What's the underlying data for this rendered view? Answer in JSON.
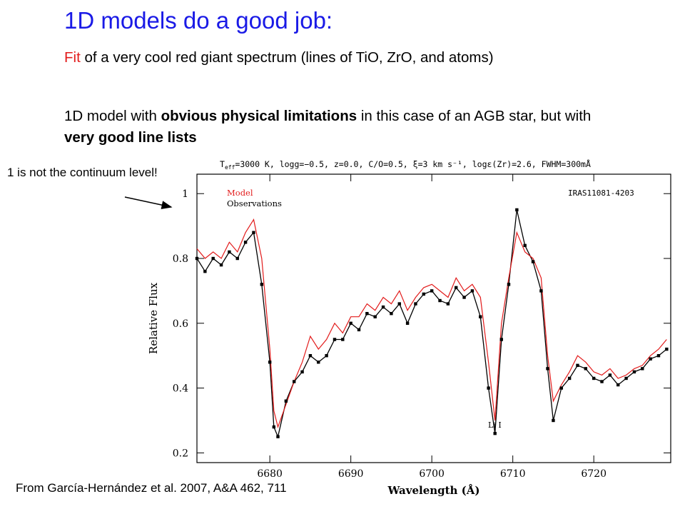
{
  "slide": {
    "title": "1D models do a good job:",
    "fit_lead": "Fit",
    "fit_rest": " of a very cool red giant spectrum (lines of TiO, ZrO, and atoms)",
    "model_a": "1D model with ",
    "model_b": "obvious physical limitations",
    "model_c": " in this case of an AGB star, but with ",
    "model_d": "very good line lists",
    "note": "1 is not the continuum level!",
    "source": "From García-Hernández et al. 2007, A&A 462, 711"
  },
  "chart_data": {
    "type": "line",
    "params": "T_eff=3000 K, logg=−0.5, z=0.0, C/O=0.5, ξ=3 km s⁻¹, logε(Zr)=2.6, FWHM=300mÅ",
    "params_prefix": "T",
    "params_sub": "eff",
    "params_body": "=3000 K, logg=−0.5, z=0.0, C/O=0.5, ξ=3 km s⁻¹, logε(Zr)=2.6, FWHM=300mÅ",
    "star": "IRAS11081-4203",
    "xlabel": "Wavelength (Å)",
    "ylabel": "Relative Flux",
    "annotation": "Li I",
    "xlim": [
      6671,
      6729.5
    ],
    "ylim": [
      0.17,
      1.06
    ],
    "xticks": [
      6680,
      6690,
      6700,
      6710,
      6720
    ],
    "yticks": [
      0.2,
      0.4,
      0.6,
      0.8,
      1
    ],
    "ytick_labels": [
      "0.2",
      "0.4",
      "0.6",
      "0.8",
      "1"
    ],
    "series": [
      {
        "name": "Model",
        "color": "#e21b1b",
        "x": [
          6671,
          6672,
          6673,
          6674,
          6675,
          6676,
          6677,
          6678,
          6679,
          6680,
          6680.5,
          6681,
          6682,
          6683,
          6684,
          6685,
          6686,
          6687,
          6688,
          6689,
          6690,
          6691,
          6692,
          6693,
          6694,
          6695,
          6696,
          6697,
          6698,
          6699,
          6700,
          6701,
          6702,
          6703,
          6704,
          6705,
          6706,
          6707,
          6707.8,
          6708.6,
          6709.5,
          6710.5,
          6711.5,
          6712.5,
          6713.5,
          6714.3,
          6715,
          6716,
          6717,
          6718,
          6719,
          6720,
          6721,
          6722,
          6723,
          6724,
          6725,
          6726,
          6727,
          6728,
          6729
        ],
        "y": [
          0.83,
          0.8,
          0.82,
          0.8,
          0.85,
          0.82,
          0.88,
          0.92,
          0.8,
          0.52,
          0.33,
          0.28,
          0.35,
          0.42,
          0.48,
          0.56,
          0.52,
          0.55,
          0.6,
          0.57,
          0.62,
          0.62,
          0.66,
          0.64,
          0.68,
          0.66,
          0.7,
          0.64,
          0.68,
          0.71,
          0.72,
          0.7,
          0.68,
          0.74,
          0.7,
          0.72,
          0.68,
          0.48,
          0.3,
          0.6,
          0.74,
          0.88,
          0.82,
          0.8,
          0.74,
          0.5,
          0.36,
          0.41,
          0.45,
          0.5,
          0.48,
          0.45,
          0.44,
          0.46,
          0.43,
          0.44,
          0.46,
          0.47,
          0.5,
          0.52,
          0.55
        ]
      },
      {
        "name": "Observations",
        "color": "#000000",
        "x": [
          6671,
          6672,
          6673,
          6674,
          6675,
          6676,
          6677,
          6678,
          6679,
          6680,
          6680.5,
          6681,
          6682,
          6683,
          6684,
          6685,
          6686,
          6687,
          6688,
          6689,
          6690,
          6691,
          6692,
          6693,
          6694,
          6695,
          6696,
          6697,
          6698,
          6699,
          6700,
          6701,
          6702,
          6703,
          6704,
          6705,
          6706,
          6707,
          6707.8,
          6708.6,
          6709.5,
          6710.5,
          6711.5,
          6712.5,
          6713.5,
          6714.3,
          6715,
          6716,
          6717,
          6718,
          6719,
          6720,
          6721,
          6722,
          6723,
          6724,
          6725,
          6726,
          6727,
          6728,
          6729
        ],
        "y": [
          0.8,
          0.76,
          0.8,
          0.78,
          0.82,
          0.8,
          0.85,
          0.88,
          0.72,
          0.48,
          0.28,
          0.25,
          0.36,
          0.42,
          0.45,
          0.5,
          0.48,
          0.5,
          0.55,
          0.55,
          0.6,
          0.58,
          0.63,
          0.62,
          0.65,
          0.63,
          0.66,
          0.6,
          0.66,
          0.69,
          0.7,
          0.67,
          0.66,
          0.71,
          0.68,
          0.7,
          0.62,
          0.4,
          0.26,
          0.55,
          0.72,
          0.95,
          0.84,
          0.79,
          0.7,
          0.46,
          0.3,
          0.4,
          0.43,
          0.47,
          0.46,
          0.43,
          0.42,
          0.44,
          0.41,
          0.43,
          0.45,
          0.46,
          0.49,
          0.5,
          0.52
        ]
      }
    ],
    "legend_position": "top-left",
    "grid": false
  }
}
